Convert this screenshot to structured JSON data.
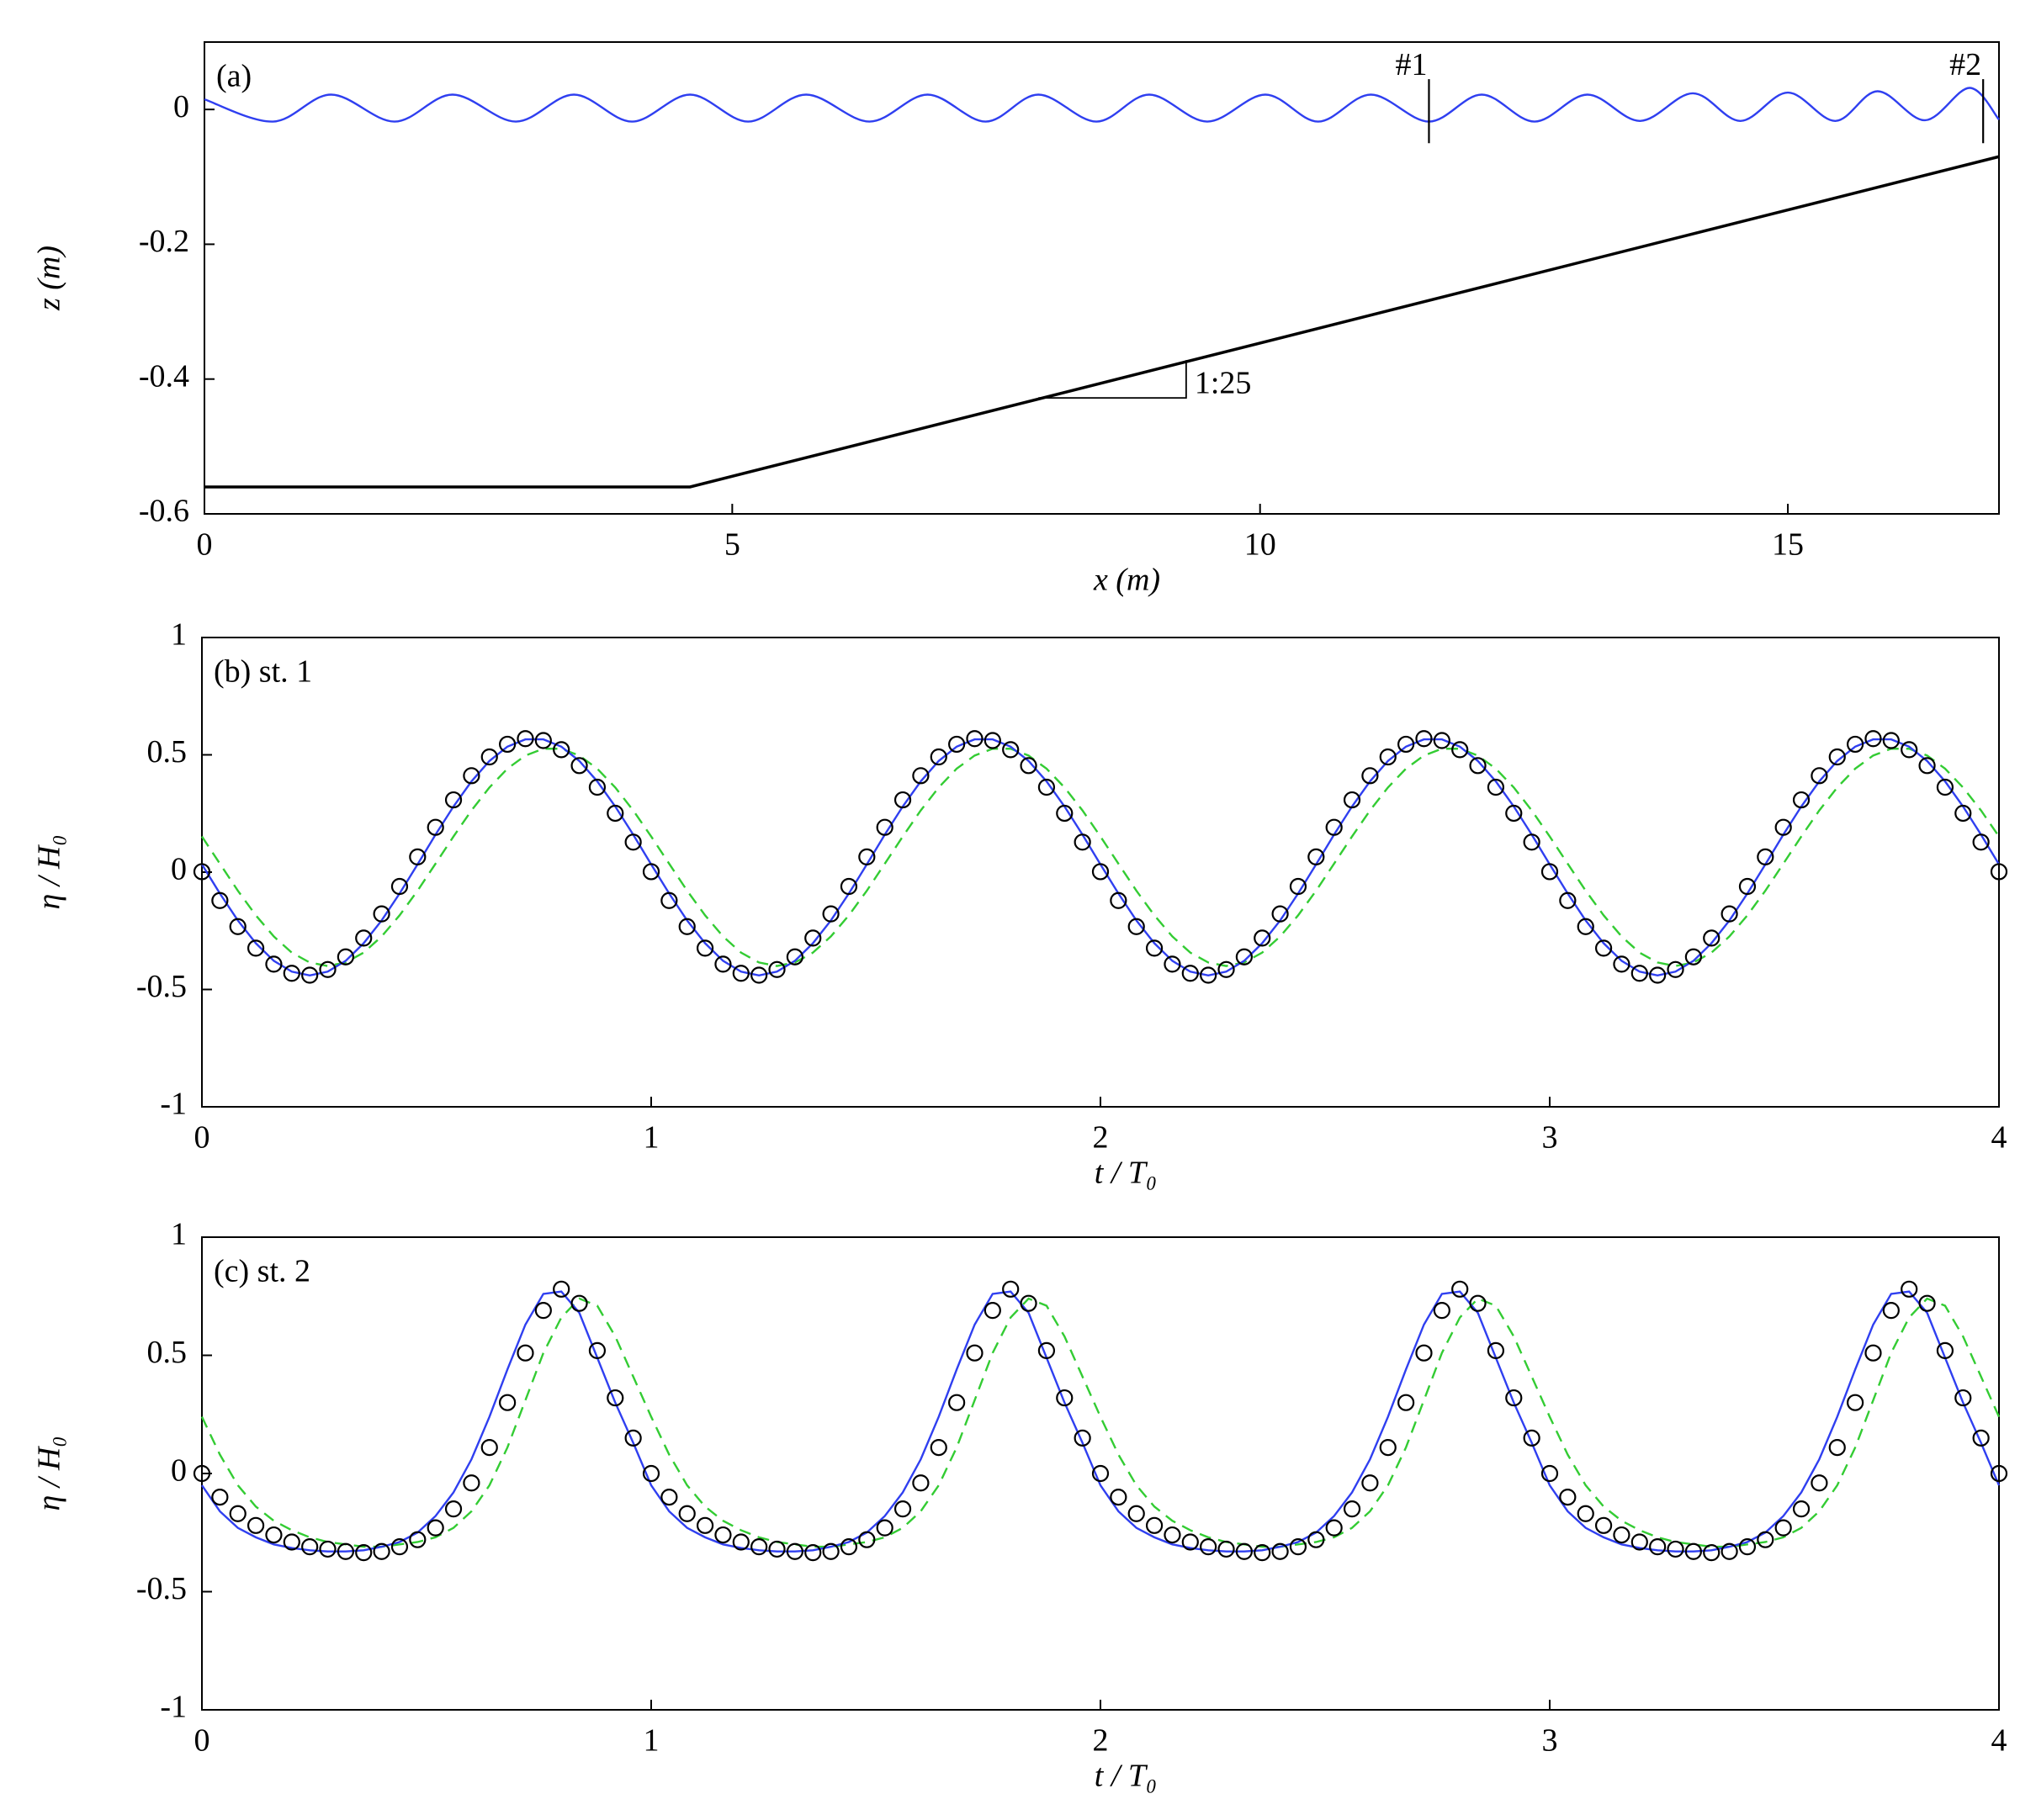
{
  "chart_data": [
    {
      "type": "line",
      "title": "(a)",
      "xlabel": "x (m)",
      "ylabel": "z (m)",
      "xlim": [
        0,
        17
      ],
      "xticks": [
        0,
        5,
        10,
        15
      ],
      "ylim": [
        -0.6,
        0.1
      ],
      "yticks": [
        -0.6,
        -0.4,
        -0.2,
        0
      ],
      "series": [
        {
          "color": "#2f3ff0",
          "mode": "line",
          "smooth": true,
          "x": [
            0,
            0.65,
            1.2,
            1.8,
            2.35,
            2.95,
            3.5,
            4.05,
            4.6,
            5.15,
            5.7,
            6.3,
            6.85,
            7.4,
            7.9,
            8.45,
            8.95,
            9.5,
            10.05,
            10.55,
            11.05,
            11.6,
            12.1,
            12.6,
            13.1,
            13.6,
            14.1,
            14.55,
            15.0,
            15.45,
            15.85,
            16.3,
            16.72,
            17.0
          ],
          "values": [
            0.015,
            -0.018,
            0.022,
            -0.018,
            0.022,
            -0.018,
            0.022,
            -0.018,
            0.022,
            -0.018,
            0.022,
            -0.018,
            0.022,
            -0.018,
            0.022,
            -0.018,
            0.022,
            -0.018,
            0.022,
            -0.018,
            0.022,
            -0.018,
            0.022,
            -0.018,
            0.022,
            -0.017,
            0.024,
            -0.017,
            0.025,
            -0.017,
            0.027,
            -0.016,
            0.032,
            -0.015
          ]
        },
        {
          "color": "#000000",
          "mode": "line",
          "width": 3.5,
          "x": [
            0,
            4.6,
            17.0
          ],
          "values": [
            -0.56,
            -0.56,
            -0.07
          ]
        }
      ],
      "stations": [
        {
          "label": "#1",
          "x": 11.6
        },
        {
          "label": "#2",
          "x": 16.85
        }
      ],
      "annotations": [
        {
          "text": "1:25"
        }
      ]
    },
    {
      "type": "line",
      "title": "(b) st. 1",
      "xlabel": "t / T₀",
      "ylabel": "η / H₀",
      "xlim": [
        0,
        4
      ],
      "xticks": [
        0,
        1,
        2,
        3,
        4
      ],
      "ylim": [
        -1,
        1
      ],
      "yticks": [
        -1,
        -0.5,
        0,
        0.5,
        1
      ],
      "x": [
        0,
        0.04,
        0.08,
        0.12,
        0.16,
        0.2,
        0.24,
        0.28,
        0.32,
        0.36,
        0.4,
        0.44,
        0.48,
        0.52,
        0.56,
        0.6,
        0.64,
        0.68,
        0.72,
        0.76,
        0.8,
        0.84,
        0.88,
        0.92,
        0.96,
        1,
        1.04,
        1.08,
        1.12,
        1.16,
        1.2,
        1.24,
        1.28,
        1.32,
        1.36,
        1.4,
        1.44,
        1.48,
        1.52,
        1.56,
        1.6,
        1.64,
        1.68,
        1.72,
        1.76,
        1.8,
        1.84,
        1.88,
        1.92,
        1.96,
        2,
        2.04,
        2.08,
        2.12,
        2.16,
        2.2,
        2.24,
        2.28,
        2.32,
        2.36,
        2.4,
        2.44,
        2.48,
        2.52,
        2.56,
        2.6,
        2.64,
        2.68,
        2.72,
        2.76,
        2.8,
        2.84,
        2.88,
        2.92,
        2.96,
        3,
        3.04,
        3.08,
        3.12,
        3.16,
        3.2,
        3.24,
        3.28,
        3.32,
        3.36,
        3.4,
        3.44,
        3.48,
        3.52,
        3.56,
        3.6,
        3.64,
        3.68,
        3.72,
        3.76,
        3.8,
        3.84,
        3.88,
        3.92,
        3.96,
        4
      ],
      "series": [
        {
          "color": "#33cc33",
          "mode": "dashed",
          "values": [
            0.152,
            0.036,
            -0.079,
            -0.184,
            -0.274,
            -0.343,
            -0.385,
            -0.4,
            -0.385,
            -0.343,
            -0.274,
            -0.184,
            -0.079,
            0.036,
            0.152,
            0.263,
            0.361,
            0.441,
            0.497,
            0.526,
            0.526,
            0.497,
            0.441,
            0.361,
            0.263,
            0.152,
            0.036,
            -0.079,
            -0.184,
            -0.274,
            -0.343,
            -0.385,
            -0.4,
            -0.385,
            -0.343,
            -0.274,
            -0.184,
            -0.079,
            0.036,
            0.152,
            0.263,
            0.361,
            0.441,
            0.497,
            0.526,
            0.526,
            0.497,
            0.441,
            0.361,
            0.263,
            0.152,
            0.036,
            -0.079,
            -0.184,
            -0.274,
            -0.343,
            -0.385,
            -0.4,
            -0.385,
            -0.343,
            -0.274,
            -0.184,
            -0.079,
            0.036,
            0.152,
            0.263,
            0.361,
            0.441,
            0.497,
            0.526,
            0.526,
            0.497,
            0.441,
            0.361,
            0.263,
            0.152,
            0.036,
            -0.079,
            -0.184,
            -0.274,
            -0.343,
            -0.385,
            -0.4,
            -0.385,
            -0.343,
            -0.274,
            -0.184,
            -0.079,
            0.036,
            0.152,
            0.263,
            0.361,
            0.441,
            0.497,
            0.526,
            0.526,
            0.497,
            0.441,
            0.361,
            0.263,
            0.152
          ]
        },
        {
          "color": "#2f3ff0",
          "mode": "line",
          "values": [
            0.033,
            -0.091,
            -0.206,
            -0.303,
            -0.378,
            -0.424,
            -0.44,
            -0.424,
            -0.378,
            -0.303,
            -0.206,
            -0.091,
            0.033,
            0.16,
            0.28,
            0.387,
            0.474,
            0.535,
            0.566,
            0.566,
            0.535,
            0.474,
            0.387,
            0.28,
            0.16,
            0.033,
            -0.091,
            -0.206,
            -0.303,
            -0.378,
            -0.424,
            -0.44,
            -0.424,
            -0.378,
            -0.303,
            -0.206,
            -0.091,
            0.033,
            0.16,
            0.28,
            0.387,
            0.474,
            0.535,
            0.566,
            0.566,
            0.535,
            0.474,
            0.387,
            0.28,
            0.16,
            0.033,
            -0.091,
            -0.206,
            -0.303,
            -0.378,
            -0.424,
            -0.44,
            -0.424,
            -0.378,
            -0.303,
            -0.206,
            -0.091,
            0.033,
            0.16,
            0.28,
            0.387,
            0.474,
            0.535,
            0.566,
            0.566,
            0.535,
            0.474,
            0.387,
            0.28,
            0.16,
            0.033,
            -0.091,
            -0.206,
            -0.303,
            -0.378,
            -0.424,
            -0.44,
            -0.424,
            -0.378,
            -0.303,
            -0.206,
            -0.091,
            0.033,
            0.16,
            0.28,
            0.387,
            0.474,
            0.535,
            0.566,
            0.566,
            0.535,
            0.474,
            0.387,
            0.28,
            0.16,
            0.033
          ]
        },
        {
          "color": "#000000",
          "mode": "markers",
          "values": [
            0.002,
            -0.121,
            -0.232,
            -0.324,
            -0.392,
            -0.431,
            -0.439,
            -0.415,
            -0.361,
            -0.281,
            -0.178,
            -0.061,
            0.065,
            0.191,
            0.308,
            0.411,
            0.491,
            0.545,
            0.569,
            0.561,
            0.522,
            0.454,
            0.362,
            0.251,
            0.128,
            0.002,
            -0.121,
            -0.232,
            -0.324,
            -0.392,
            -0.431,
            -0.439,
            -0.415,
            -0.361,
            -0.281,
            -0.178,
            -0.061,
            0.065,
            0.191,
            0.308,
            0.411,
            0.491,
            0.545,
            0.569,
            0.561,
            0.522,
            0.454,
            0.362,
            0.251,
            0.128,
            0.002,
            -0.121,
            -0.232,
            -0.324,
            -0.392,
            -0.431,
            -0.439,
            -0.415,
            -0.361,
            -0.281,
            -0.178,
            -0.061,
            0.065,
            0.191,
            0.308,
            0.411,
            0.491,
            0.545,
            0.569,
            0.561,
            0.522,
            0.454,
            0.362,
            0.251,
            0.128,
            0.002,
            -0.121,
            -0.232,
            -0.324,
            -0.392,
            -0.431,
            -0.439,
            -0.415,
            -0.361,
            -0.281,
            -0.178,
            -0.061,
            0.065,
            0.191,
            0.308,
            0.411,
            0.491,
            0.545,
            0.569,
            0.561,
            0.522,
            0.454,
            0.362,
            0.251,
            0.128,
            0.002
          ]
        }
      ]
    },
    {
      "type": "line",
      "title": "(c) st. 2",
      "xlabel": "t / T₀",
      "ylabel": "η / H₀",
      "xlim": [
        0,
        4
      ],
      "xticks": [
        0,
        1,
        2,
        3,
        4
      ],
      "ylim": [
        -1,
        1
      ],
      "yticks": [
        -1,
        -0.5,
        0,
        0.5,
        1
      ],
      "x": [
        0,
        0.04,
        0.08,
        0.12,
        0.16,
        0.2,
        0.24,
        0.28,
        0.32,
        0.36,
        0.4,
        0.44,
        0.48,
        0.52,
        0.56,
        0.6,
        0.64,
        0.68,
        0.72,
        0.76,
        0.8,
        0.84,
        0.88,
        0.92,
        0.96,
        1,
        1.04,
        1.08,
        1.12,
        1.16,
        1.2,
        1.24,
        1.28,
        1.32,
        1.36,
        1.4,
        1.44,
        1.48,
        1.52,
        1.56,
        1.6,
        1.64,
        1.68,
        1.72,
        1.76,
        1.8,
        1.84,
        1.88,
        1.92,
        1.96,
        2,
        2.04,
        2.08,
        2.12,
        2.16,
        2.2,
        2.24,
        2.28,
        2.32,
        2.36,
        2.4,
        2.44,
        2.48,
        2.52,
        2.56,
        2.6,
        2.64,
        2.68,
        2.72,
        2.76,
        2.8,
        2.84,
        2.88,
        2.92,
        2.96,
        3,
        3.04,
        3.08,
        3.12,
        3.16,
        3.2,
        3.24,
        3.28,
        3.32,
        3.36,
        3.4,
        3.44,
        3.48,
        3.52,
        3.56,
        3.6,
        3.64,
        3.68,
        3.72,
        3.76,
        3.8,
        3.84,
        3.88,
        3.92,
        3.96,
        4
      ],
      "series": [
        {
          "color": "#33cc33",
          "mode": "dashed",
          "values": [
            0.24,
            0.08,
            -0.05,
            -0.14,
            -0.2,
            -0.24,
            -0.27,
            -0.29,
            -0.3,
            -0.31,
            -0.31,
            -0.3,
            -0.29,
            -0.27,
            -0.23,
            -0.16,
            -0.05,
            0.11,
            0.31,
            0.51,
            0.66,
            0.74,
            0.71,
            0.58,
            0.41,
            0.24,
            0.08,
            -0.05,
            -0.14,
            -0.2,
            -0.24,
            -0.27,
            -0.29,
            -0.3,
            -0.31,
            -0.31,
            -0.3,
            -0.29,
            -0.27,
            -0.23,
            -0.16,
            -0.05,
            0.11,
            0.31,
            0.51,
            0.66,
            0.74,
            0.71,
            0.58,
            0.41,
            0.24,
            0.08,
            -0.05,
            -0.14,
            -0.2,
            -0.24,
            -0.27,
            -0.29,
            -0.3,
            -0.31,
            -0.31,
            -0.3,
            -0.29,
            -0.27,
            -0.23,
            -0.16,
            -0.05,
            0.11,
            0.31,
            0.51,
            0.66,
            0.74,
            0.71,
            0.58,
            0.41,
            0.24,
            0.08,
            -0.05,
            -0.14,
            -0.2,
            -0.24,
            -0.27,
            -0.29,
            -0.3,
            -0.31,
            -0.31,
            -0.3,
            -0.29,
            -0.27,
            -0.23,
            -0.16,
            -0.05,
            0.11,
            0.31,
            0.51,
            0.66,
            0.74,
            0.71,
            0.58,
            0.41,
            0.24
          ]
        },
        {
          "color": "#2f3ff0",
          "mode": "line",
          "values": [
            -0.05,
            -0.16,
            -0.23,
            -0.27,
            -0.3,
            -0.315,
            -0.325,
            -0.33,
            -0.33,
            -0.325,
            -0.31,
            -0.29,
            -0.25,
            -0.18,
            -0.08,
            0.06,
            0.24,
            0.44,
            0.63,
            0.76,
            0.77,
            0.68,
            0.49,
            0.3,
            0.13,
            -0.05,
            -0.16,
            -0.23,
            -0.27,
            -0.3,
            -0.315,
            -0.325,
            -0.33,
            -0.33,
            -0.325,
            -0.31,
            -0.29,
            -0.25,
            -0.18,
            -0.08,
            0.06,
            0.24,
            0.44,
            0.63,
            0.76,
            0.77,
            0.68,
            0.49,
            0.3,
            0.13,
            -0.05,
            -0.16,
            -0.23,
            -0.27,
            -0.3,
            -0.315,
            -0.325,
            -0.33,
            -0.33,
            -0.325,
            -0.31,
            -0.29,
            -0.25,
            -0.18,
            -0.08,
            0.06,
            0.24,
            0.44,
            0.63,
            0.76,
            0.77,
            0.68,
            0.49,
            0.3,
            0.13,
            -0.05,
            -0.16,
            -0.23,
            -0.27,
            -0.3,
            -0.315,
            -0.325,
            -0.33,
            -0.33,
            -0.325,
            -0.31,
            -0.29,
            -0.25,
            -0.18,
            -0.08,
            0.06,
            0.24,
            0.44,
            0.63,
            0.76,
            0.77,
            0.68,
            0.49,
            0.3,
            0.13,
            -0.05
          ]
        },
        {
          "color": "#000000",
          "mode": "markers",
          "values": [
            0,
            -0.1,
            -0.17,
            -0.22,
            -0.26,
            -0.29,
            -0.31,
            -0.32,
            -0.33,
            -0.335,
            -0.33,
            -0.31,
            -0.28,
            -0.23,
            -0.15,
            -0.04,
            0.11,
            0.3,
            0.51,
            0.69,
            0.78,
            0.72,
            0.52,
            0.32,
            0.15,
            0,
            -0.1,
            -0.17,
            -0.22,
            -0.26,
            -0.29,
            -0.31,
            -0.32,
            -0.33,
            -0.335,
            -0.33,
            -0.31,
            -0.28,
            -0.23,
            -0.15,
            -0.04,
            0.11,
            0.3,
            0.51,
            0.69,
            0.78,
            0.72,
            0.52,
            0.32,
            0.15,
            0,
            -0.1,
            -0.17,
            -0.22,
            -0.26,
            -0.29,
            -0.31,
            -0.32,
            -0.33,
            -0.335,
            -0.33,
            -0.31,
            -0.28,
            -0.23,
            -0.15,
            -0.04,
            0.11,
            0.3,
            0.51,
            0.69,
            0.78,
            0.72,
            0.52,
            0.32,
            0.15,
            0,
            -0.1,
            -0.17,
            -0.22,
            -0.26,
            -0.29,
            -0.31,
            -0.32,
            -0.33,
            -0.335,
            -0.33,
            -0.31,
            -0.28,
            -0.23,
            -0.15,
            -0.04,
            0.11,
            0.3,
            0.51,
            0.69,
            0.78,
            0.72,
            0.52,
            0.32,
            0.15,
            0
          ]
        }
      ]
    }
  ]
}
